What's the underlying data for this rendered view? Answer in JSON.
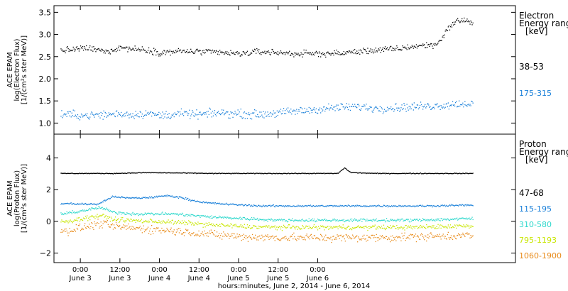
{
  "chart_data": [
    {
      "type": "scatter",
      "panel": "electron",
      "title": "",
      "ylabel_lines": [
        "ACE EPAM",
        "log(Electron Flux)",
        "[1/(cm²s ster MeV)]"
      ],
      "ylim": [
        0.75,
        3.65
      ],
      "yticks": [
        {
          "value": 1.0,
          "label": "1.0"
        },
        {
          "value": 1.5,
          "label": "1.5"
        },
        {
          "value": 2.0,
          "label": "2.0"
        },
        {
          "value": 2.5,
          "label": "2.5"
        },
        {
          "value": 3.0,
          "label": "3.0"
        },
        {
          "value": 3.5,
          "label": "3.5"
        }
      ],
      "legend_title_lines": [
        "Electron",
        "Energy ranges",
        "[keV]"
      ],
      "series": [
        {
          "name": "38-53",
          "color": "#000000",
          "points": [
            [
              -5,
              2.65
            ],
            [
              2,
              2.7
            ],
            [
              8,
              2.62
            ],
            [
              12,
              2.72
            ],
            [
              16,
              2.68
            ],
            [
              20,
              2.66
            ],
            [
              24,
              2.6
            ],
            [
              30,
              2.63
            ],
            [
              36,
              2.62
            ],
            [
              42,
              2.6
            ],
            [
              48,
              2.57
            ],
            [
              54,
              2.62
            ],
            [
              60,
              2.6
            ],
            [
              66,
              2.57
            ],
            [
              72,
              2.58
            ],
            [
              78,
              2.58
            ],
            [
              84,
              2.62
            ],
            [
              90,
              2.66
            ],
            [
              96,
              2.68
            ],
            [
              100,
              2.73
            ],
            [
              104,
              2.76
            ],
            [
              108,
              2.78
            ],
            [
              110,
              2.98
            ],
            [
              112,
              3.2
            ],
            [
              114,
              3.3
            ],
            [
              116,
              3.35
            ],
            [
              118,
              3.28
            ]
          ],
          "noise": 0.06
        },
        {
          "name": "175-315",
          "color": "#1a80d9",
          "points": [
            [
              -5,
              1.2
            ],
            [
              2,
              1.18
            ],
            [
              8,
              1.2
            ],
            [
              12,
              1.22
            ],
            [
              16,
              1.2
            ],
            [
              20,
              1.23
            ],
            [
              24,
              1.18
            ],
            [
              30,
              1.22
            ],
            [
              36,
              1.2
            ],
            [
              42,
              1.24
            ],
            [
              48,
              1.22
            ],
            [
              54,
              1.2
            ],
            [
              60,
              1.24
            ],
            [
              66,
              1.28
            ],
            [
              72,
              1.32
            ],
            [
              78,
              1.36
            ],
            [
              84,
              1.38
            ],
            [
              90,
              1.34
            ],
            [
              96,
              1.36
            ],
            [
              102,
              1.38
            ],
            [
              108,
              1.4
            ],
            [
              114,
              1.44
            ],
            [
              118,
              1.45
            ]
          ],
          "noise": 0.08
        }
      ]
    },
    {
      "type": "scatter",
      "panel": "proton",
      "title": "",
      "ylabel_lines": [
        "ACE EPAM",
        "log(Proton Flux)",
        "[1/(cm²s ster MeV)]"
      ],
      "ylim": [
        -2.6,
        5.5
      ],
      "yticks": [
        {
          "value": -2,
          "label": "−2"
        },
        {
          "value": 0,
          "label": "0"
        },
        {
          "value": 2,
          "label": "2"
        },
        {
          "value": 4,
          "label": "4"
        }
      ],
      "legend_title_lines": [
        "Proton",
        "Energy ranges",
        "[keV]"
      ],
      "series": [
        {
          "name": "47-68",
          "color": "#000000",
          "points": [
            [
              -5,
              3.05
            ],
            [
              10,
              3.05
            ],
            [
              20,
              3.1
            ],
            [
              30,
              3.08
            ],
            [
              40,
              3.05
            ],
            [
              60,
              3.05
            ],
            [
              78,
              3.05
            ],
            [
              80,
              3.4
            ],
            [
              82,
              3.1
            ],
            [
              90,
              3.05
            ],
            [
              118,
              3.05
            ]
          ],
          "noise": 0.02
        },
        {
          "name": "115-195",
          "color": "#1a80d9",
          "points": [
            [
              -5,
              1.15
            ],
            [
              5,
              1.1
            ],
            [
              10,
              1.6
            ],
            [
              14,
              1.5
            ],
            [
              18,
              1.5
            ],
            [
              22,
              1.55
            ],
            [
              26,
              1.65
            ],
            [
              30,
              1.55
            ],
            [
              34,
              1.35
            ],
            [
              38,
              1.2
            ],
            [
              45,
              1.1
            ],
            [
              55,
              1.0
            ],
            [
              65,
              1.0
            ],
            [
              75,
              1.0
            ],
            [
              85,
              1.0
            ],
            [
              95,
              1.0
            ],
            [
              105,
              1.0
            ],
            [
              118,
              1.05
            ]
          ],
          "noise": 0.05
        },
        {
          "name": "310-580",
          "color": "#2ed8cc",
          "points": [
            [
              -5,
              0.5
            ],
            [
              2,
              0.75
            ],
            [
              6,
              0.9
            ],
            [
              10,
              0.6
            ],
            [
              16,
              0.5
            ],
            [
              22,
              0.5
            ],
            [
              28,
              0.5
            ],
            [
              34,
              0.4
            ],
            [
              40,
              0.3
            ],
            [
              50,
              0.2
            ],
            [
              60,
              0.1
            ],
            [
              70,
              0.1
            ],
            [
              80,
              0.1
            ],
            [
              90,
              0.1
            ],
            [
              100,
              0.1
            ],
            [
              110,
              0.15
            ],
            [
              118,
              0.2
            ]
          ],
          "noise": 0.08
        },
        {
          "name": "795-1193",
          "color": "#c8e600",
          "points": [
            [
              -5,
              0.0
            ],
            [
              2,
              0.25
            ],
            [
              6,
              0.4
            ],
            [
              10,
              0.15
            ],
            [
              18,
              0.05
            ],
            [
              26,
              0.0
            ],
            [
              34,
              -0.1
            ],
            [
              40,
              -0.2
            ],
            [
              50,
              -0.3
            ],
            [
              60,
              -0.35
            ],
            [
              70,
              -0.35
            ],
            [
              80,
              -0.35
            ],
            [
              90,
              -0.35
            ],
            [
              100,
              -0.35
            ],
            [
              110,
              -0.3
            ],
            [
              118,
              -0.25
            ]
          ],
          "noise": 0.12
        },
        {
          "name": "1060-1900",
          "color": "#e88b1a",
          "points": [
            [
              -5,
              -0.6
            ],
            [
              2,
              -0.3
            ],
            [
              6,
              -0.1
            ],
            [
              10,
              -0.3
            ],
            [
              20,
              -0.45
            ],
            [
              30,
              -0.6
            ],
            [
              40,
              -0.8
            ],
            [
              50,
              -0.95
            ],
            [
              60,
              -1.0
            ],
            [
              70,
              -1.0
            ],
            [
              80,
              -1.0
            ],
            [
              90,
              -1.0
            ],
            [
              100,
              -0.95
            ],
            [
              110,
              -0.9
            ],
            [
              118,
              -0.85
            ]
          ],
          "noise": 0.22
        }
      ]
    }
  ],
  "x_axis": {
    "xlim": [
      -8,
      132
    ],
    "ticks": [
      {
        "value": 0,
        "time": "0:00",
        "day": "June 3"
      },
      {
        "value": 12,
        "time": "12:00",
        "day": "June 3"
      },
      {
        "value": 24,
        "time": "0:00",
        "day": "June 4"
      },
      {
        "value": 36,
        "time": "12:00",
        "day": "June 4"
      },
      {
        "value": 48,
        "time": "0:00",
        "day": "June 5"
      },
      {
        "value": 60,
        "time": "12:00",
        "day": "June 5"
      },
      {
        "value": 72,
        "time": "0:00",
        "day": "June 6"
      }
    ],
    "xlabel": "hours:minutes, June  2, 2014 - June  6, 2014"
  }
}
